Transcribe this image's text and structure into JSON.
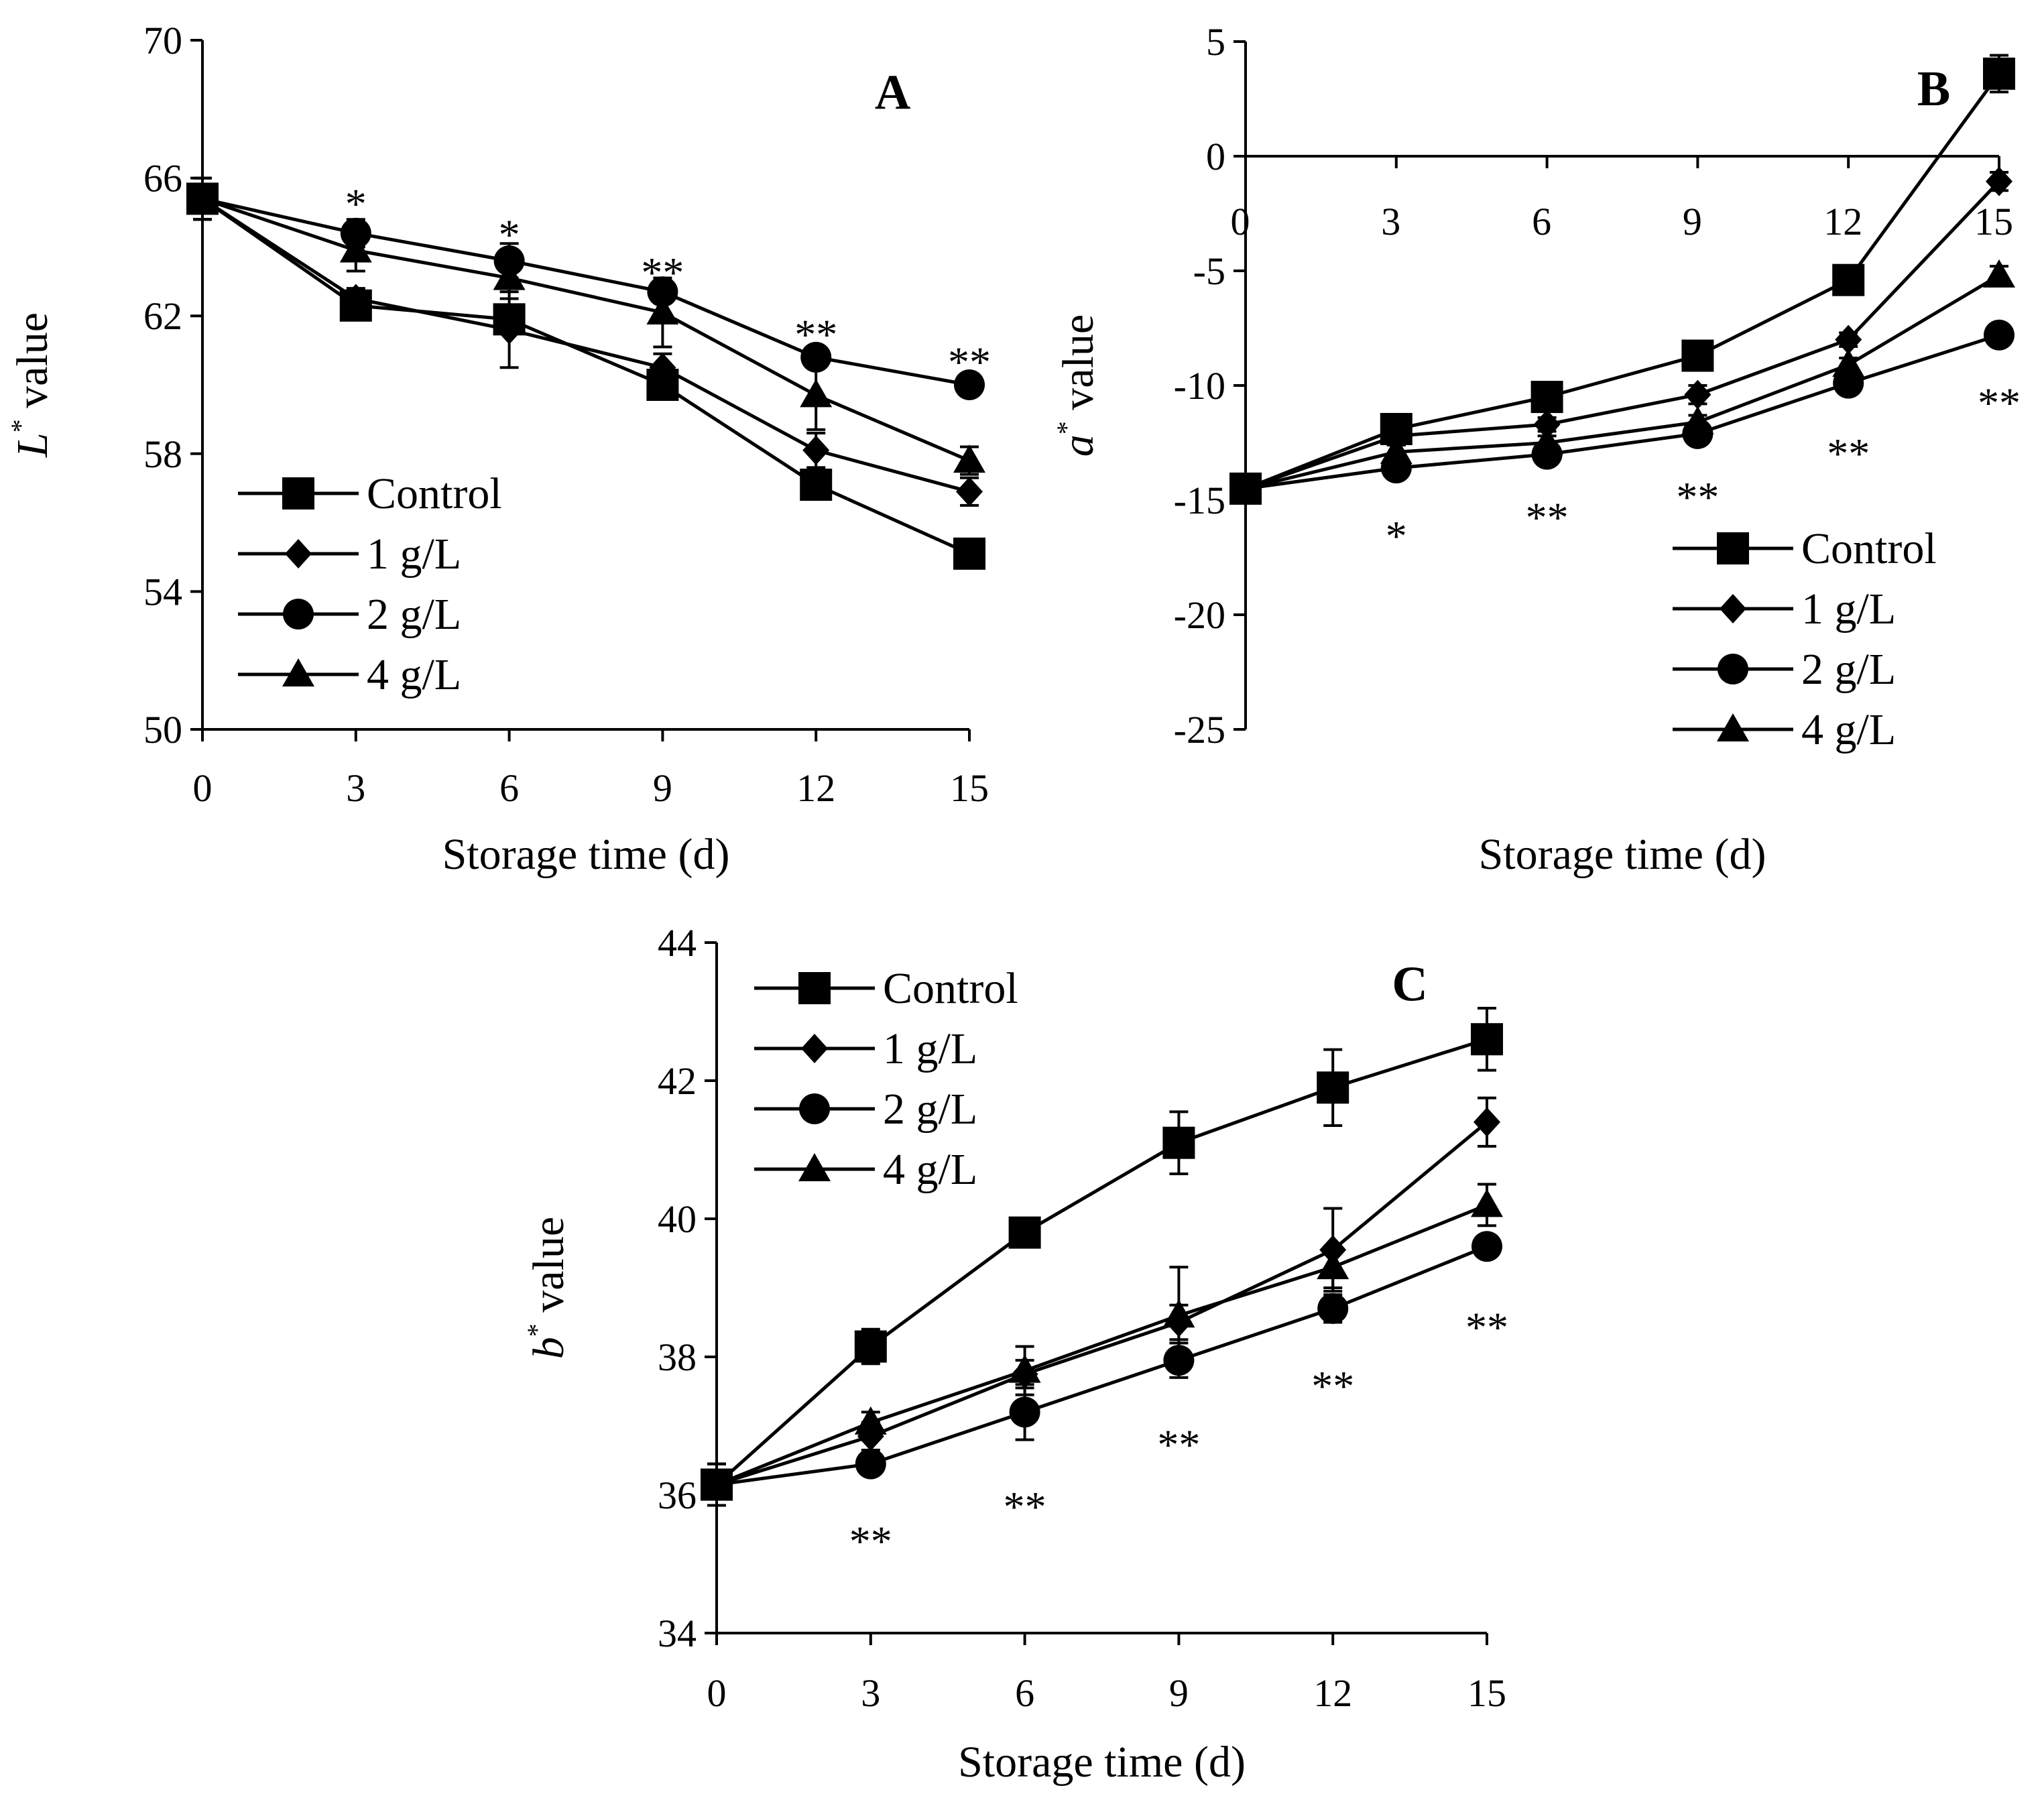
{
  "chart_data": [
    {
      "panel": "A",
      "type": "line",
      "title": "",
      "xlabel": "Storage time (d)",
      "ylabel_italic": "L",
      "ylabel_sup": "*",
      "ylabel_rest": " value",
      "x": [
        0,
        3,
        6,
        9,
        12,
        15
      ],
      "xticks": [
        "0",
        "3",
        "6",
        "9",
        "12",
        "15"
      ],
      "ylim": [
        50,
        70
      ],
      "yticks": [
        50,
        54,
        58,
        62,
        66,
        70
      ],
      "ytick_labels": [
        "50",
        "54",
        "58",
        "62",
        "66",
        "70"
      ],
      "x_axis_at": 50,
      "x_tick_labels_position": "bottom",
      "legend_position": "bottom-left",
      "series": [
        {
          "name": "Control",
          "marker": "square",
          "values": [
            65.4,
            62.3,
            61.9,
            60.0,
            57.1,
            55.1
          ],
          "errors": [
            0.6,
            0.3,
            0.3,
            0.3,
            0.3,
            0.3
          ]
        },
        {
          "name": "1 g/L",
          "marker": "diamond",
          "values": [
            65.4,
            62.5,
            61.6,
            60.5,
            58.1,
            56.9
          ],
          "errors": [
            0.6,
            0.3,
            1.1,
            0.4,
            0.5,
            0.4
          ]
        },
        {
          "name": "2 g/L",
          "marker": "circle",
          "values": [
            65.4,
            64.4,
            63.6,
            62.7,
            60.8,
            60.0
          ],
          "errors": [
            0.6,
            0.4,
            0.5,
            0.3,
            0.2,
            0.2
          ]
        },
        {
          "name": "4 g/L",
          "marker": "triangle",
          "values": [
            65.4,
            63.9,
            63.1,
            62.1,
            59.7,
            57.8
          ],
          "errors": [
            0.6,
            0.6,
            0.6,
            1.0,
            1.0,
            0.4
          ]
        }
      ],
      "annotations": [
        {
          "x": 3,
          "y": 65.5,
          "text": "*"
        },
        {
          "x": 6,
          "y": 64.6,
          "text": "*"
        },
        {
          "x": 9,
          "y": 63.5,
          "text": "**"
        },
        {
          "x": 12,
          "y": 61.7,
          "text": "**"
        },
        {
          "x": 15,
          "y": 60.9,
          "text": "**"
        }
      ],
      "panel_label_x": 13.5,
      "panel_label_y": 68.6
    },
    {
      "panel": "B",
      "type": "line",
      "title": "",
      "xlabel": "Storage time (d)",
      "ylabel_italic": "a",
      "ylabel_sup": "*",
      "ylabel_rest": " value",
      "x": [
        0,
        3,
        6,
        9,
        12,
        15
      ],
      "xticks": [
        "0",
        "3",
        "6",
        "9",
        "12",
        "15"
      ],
      "ylim": [
        -25,
        5
      ],
      "yticks": [
        -25,
        -20,
        -15,
        -10,
        -5,
        0,
        5
      ],
      "ytick_labels": [
        "-25",
        "-20",
        "-15",
        "-10",
        "-5",
        "0",
        "5"
      ],
      "x_axis_at": 0,
      "x_tick_labels_position": "below-zero-line",
      "legend_position": "bottom-right",
      "series": [
        {
          "name": "Control",
          "marker": "square",
          "values": [
            -14.5,
            -11.9,
            -10.5,
            -8.7,
            -5.4,
            3.6
          ],
          "errors": [
            0.5,
            0.3,
            0.3,
            0.3,
            0.3,
            0.8
          ]
        },
        {
          "name": "1 g/L",
          "marker": "diamond",
          "values": [
            -14.5,
            -12.2,
            -11.7,
            -10.4,
            -8.0,
            -1.1
          ],
          "errors": [
            0.5,
            0.4,
            0.3,
            0.4,
            0.3,
            0.4
          ]
        },
        {
          "name": "2 g/L",
          "marker": "circle",
          "values": [
            -14.5,
            -13.6,
            -13.0,
            -12.1,
            -9.9,
            -7.8
          ],
          "errors": [
            0.5,
            0.3,
            0.3,
            0.3,
            0.3,
            0.3
          ]
        },
        {
          "name": "4 g/L",
          "marker": "triangle",
          "values": [
            -14.5,
            -12.9,
            -12.5,
            -11.6,
            -9.1,
            -5.2
          ],
          "errors": [
            0.5,
            0.3,
            0.3,
            0.3,
            0.3,
            0.4
          ]
        }
      ],
      "annotations": [
        {
          "x": 3,
          "y": -16.2,
          "text": "*"
        },
        {
          "x": 6,
          "y": -15.4,
          "text": "**"
        },
        {
          "x": 9,
          "y": -14.5,
          "text": "**"
        },
        {
          "x": 12,
          "y": -12.6,
          "text": "**"
        },
        {
          "x": 15,
          "y": -10.4,
          "text": "**"
        }
      ],
      "panel_label_x": 13.7,
      "panel_label_y": 3.1
    },
    {
      "panel": "C",
      "type": "line",
      "title": "",
      "xlabel": "Storage time (d)",
      "ylabel_italic": "b",
      "ylabel_sup": "*",
      "ylabel_rest": " value",
      "x": [
        0,
        3,
        6,
        9,
        12,
        15
      ],
      "xticks": [
        "0",
        "3",
        "6",
        "9",
        "12",
        "15"
      ],
      "ylim": [
        34,
        44
      ],
      "yticks": [
        34,
        36,
        38,
        40,
        42,
        44
      ],
      "ytick_labels": [
        "34",
        "36",
        "38",
        "40",
        "42",
        "44"
      ],
      "x_axis_at": 34,
      "x_tick_labels_position": "bottom",
      "legend_position": "top-left",
      "series": [
        {
          "name": "Control",
          "marker": "square",
          "values": [
            36.15,
            38.15,
            39.8,
            41.1,
            41.9,
            42.6
          ],
          "errors": [
            0.3,
            0.25,
            0.2,
            0.45,
            0.55,
            0.45
          ]
        },
        {
          "name": "1 g/L",
          "marker": "diamond",
          "values": [
            36.15,
            36.85,
            37.75,
            38.5,
            39.55,
            41.4
          ],
          "errors": [
            0.3,
            0.2,
            0.2,
            0.25,
            0.6,
            0.35
          ]
        },
        {
          "name": "2 g/L",
          "marker": "circle",
          "values": [
            36.15,
            36.45,
            37.2,
            37.95,
            38.7,
            39.6
          ],
          "errors": [
            0.3,
            0.1,
            0.4,
            0.25,
            0.2,
            0.15
          ]
        },
        {
          "name": "4 g/L",
          "marker": "triangle",
          "values": [
            36.15,
            37.05,
            37.8,
            38.6,
            39.3,
            40.2
          ],
          "errors": [
            0.3,
            0.15,
            0.35,
            0.7,
            0.3,
            0.3
          ]
        }
      ],
      "annotations": [
        {
          "x": 3,
          "y": 35.45,
          "text": "**"
        },
        {
          "x": 6,
          "y": 35.95,
          "text": "**"
        },
        {
          "x": 9,
          "y": 36.85,
          "text": "**"
        },
        {
          "x": 12,
          "y": 37.7,
          "text": "**"
        },
        {
          "x": 15,
          "y": 38.55,
          "text": "**"
        }
      ],
      "panel_label_x": 13.5,
      "panel_label_y": 43.45
    }
  ]
}
